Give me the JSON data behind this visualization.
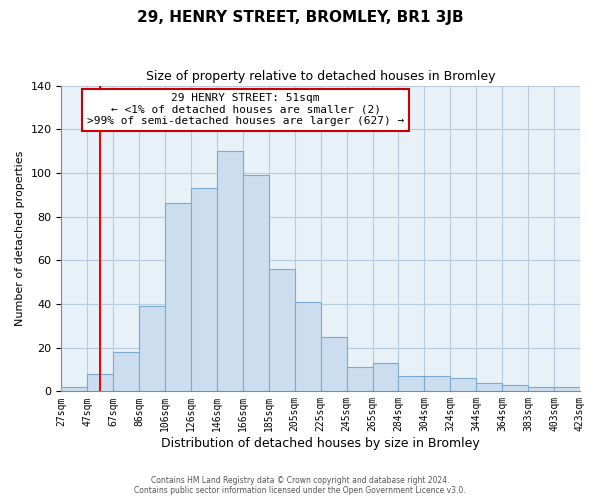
{
  "title": "29, HENRY STREET, BROMLEY, BR1 3JB",
  "subtitle": "Size of property relative to detached houses in Bromley",
  "xlabel": "Distribution of detached houses by size in Bromley",
  "ylabel": "Number of detached properties",
  "bar_labels": [
    "27sqm",
    "47sqm",
    "67sqm",
    "86sqm",
    "106sqm",
    "126sqm",
    "146sqm",
    "166sqm",
    "185sqm",
    "205sqm",
    "225sqm",
    "245sqm",
    "265sqm",
    "284sqm",
    "304sqm",
    "324sqm",
    "344sqm",
    "364sqm",
    "383sqm",
    "403sqm",
    "423sqm"
  ],
  "bar_heights": [
    2,
    8,
    18,
    39,
    86,
    93,
    110,
    99,
    56,
    41,
    25,
    11,
    13,
    7,
    7,
    6,
    4,
    3,
    2,
    2
  ],
  "bar_color": "#ccddf0",
  "bar_edge_color": "#7aaad0",
  "red_line_x": 1.5,
  "ylim": [
    0,
    140
  ],
  "yticks": [
    0,
    20,
    40,
    60,
    80,
    100,
    120,
    140
  ],
  "annotation_title": "29 HENRY STREET: 51sqm",
  "annotation_line1": "← <1% of detached houses are smaller (2)",
  "annotation_line2": ">99% of semi-detached houses are larger (627) →",
  "annotation_box_color": "#ffffff",
  "annotation_box_edge": "#cc0000",
  "footer_line1": "Contains HM Land Registry data © Crown copyright and database right 2024.",
  "footer_line2": "Contains public sector information licensed under the Open Government Licence v3.0.",
  "background_color": "#ffffff",
  "plot_bg_color": "#e8f0f8",
  "grid_color": "#b8cce0"
}
